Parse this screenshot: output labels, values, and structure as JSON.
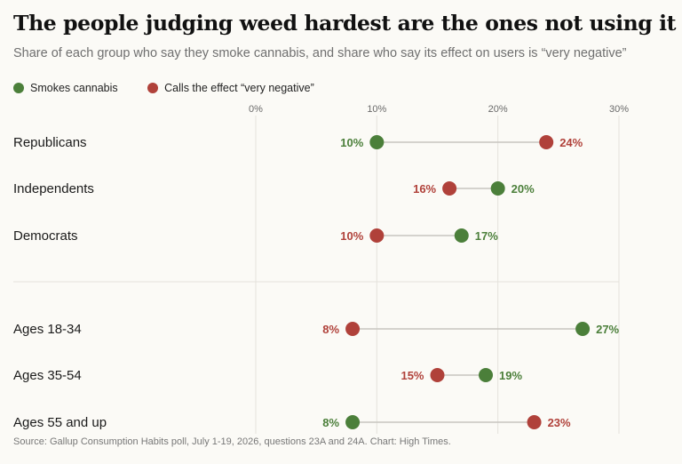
{
  "chart_data": {
    "type": "dot",
    "title": "The people judging weed hardest are the ones not using it",
    "subtitle": "Share of each group who say they smoke cannabis, and share who say its effect on users is “very negative”",
    "legend": [
      {
        "name": "Smokes cannabis",
        "color": "#4b7f3a"
      },
      {
        "name": "Calls the effect “very negative”",
        "color": "#b0413a"
      }
    ],
    "xlim": [
      0,
      30
    ],
    "ticks": [
      {
        "value": 0,
        "label": "0%"
      },
      {
        "value": 10,
        "label": "10%"
      },
      {
        "value": 20,
        "label": "20%"
      },
      {
        "value": 30,
        "label": "30%"
      }
    ],
    "groups": [
      {
        "label": "Republicans",
        "smokes": 10,
        "smokes_label": "10%",
        "negative": 24,
        "negative_label": "24%"
      },
      {
        "label": "Independents",
        "smokes": 20,
        "smokes_label": "20%",
        "negative": 16,
        "negative_label": "16%"
      },
      {
        "label": "Democrats",
        "smokes": 17,
        "smokes_label": "17%",
        "negative": 10,
        "negative_label": "10%"
      },
      {
        "label": "Ages 18-34",
        "smokes": 27,
        "smokes_label": "27%",
        "negative": 8,
        "negative_label": "8%"
      },
      {
        "label": "Ages 35-54",
        "smokes": 19,
        "smokes_label": "19%",
        "negative": 15,
        "negative_label": "15%"
      },
      {
        "label": "Ages 55 and up",
        "smokes": 8,
        "smokes_label": "8%",
        "negative": 23,
        "negative_label": "23%"
      }
    ],
    "source": "Source: Gallup Consumption Habits poll, July 1-19, 2026, questions 23A and 24A. Chart: High Times."
  }
}
